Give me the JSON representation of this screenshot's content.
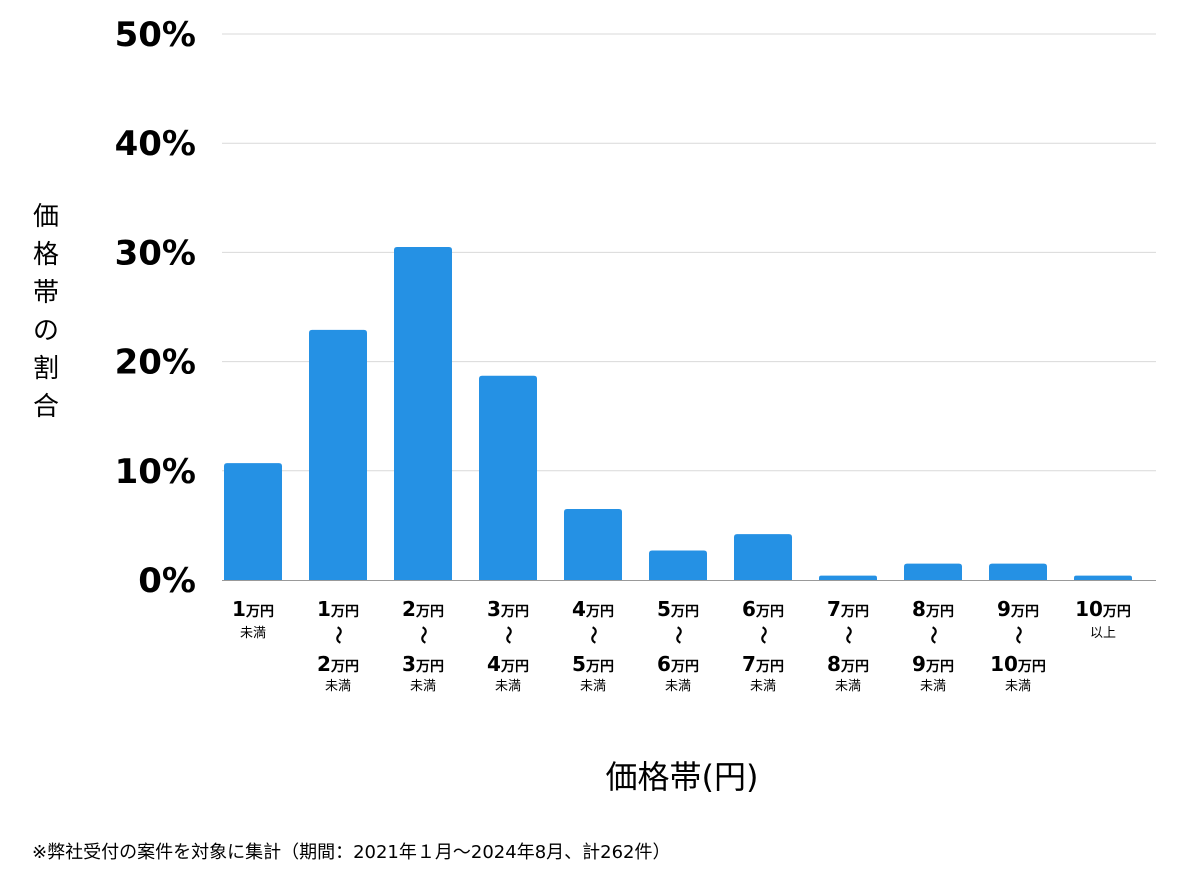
{
  "chart_data": {
    "type": "bar",
    "title": "",
    "categories": [
      {
        "start": "1",
        "start_unit": "万円",
        "end": "",
        "end_unit": "",
        "suffix": "未満"
      },
      {
        "start": "1",
        "start_unit": "万円",
        "end": "2",
        "end_unit": "万円",
        "suffix": "未満"
      },
      {
        "start": "2",
        "start_unit": "万円",
        "end": "3",
        "end_unit": "万円",
        "suffix": "未満"
      },
      {
        "start": "3",
        "start_unit": "万円",
        "end": "4",
        "end_unit": "万円",
        "suffix": "未満"
      },
      {
        "start": "4",
        "start_unit": "万円",
        "end": "5",
        "end_unit": "万円",
        "suffix": "未満"
      },
      {
        "start": "5",
        "start_unit": "万円",
        "end": "6",
        "end_unit": "万円",
        "suffix": "未満"
      },
      {
        "start": "6",
        "start_unit": "万円",
        "end": "7",
        "end_unit": "万円",
        "suffix": "未満"
      },
      {
        "start": "7",
        "start_unit": "万円",
        "end": "8",
        "end_unit": "万円",
        "suffix": "未満"
      },
      {
        "start": "8",
        "start_unit": "万円",
        "end": "9",
        "end_unit": "万円",
        "suffix": "未満"
      },
      {
        "start": "9",
        "start_unit": "万円",
        "end": "10",
        "end_unit": "万円",
        "suffix": "未満"
      },
      {
        "start": "10",
        "start_unit": "万円",
        "end": "",
        "end_unit": "",
        "suffix": "以上"
      }
    ],
    "range_separator": "〜",
    "values": [
      10.7,
      22.9,
      30.5,
      18.7,
      6.5,
      2.7,
      4.2,
      0.4,
      1.5,
      1.5,
      0.4
    ],
    "value_unit": "%",
    "ylim": [
      0,
      50
    ],
    "yticks": [
      0,
      10,
      20,
      30,
      40,
      50
    ],
    "ytick_labels": [
      "0%",
      "10%",
      "20%",
      "30%",
      "40%",
      "50%"
    ],
    "ylabel": "価格帯の割合",
    "xlabel": "価格帯(円)",
    "grid": true,
    "bar_color": "#2591e4",
    "grid_color": "#d9d9d9",
    "axis_color": "#999999"
  },
  "footnote": "※弊社受付の案件を対象に集計（期間：2021年１月〜2024年8月、計262件）"
}
